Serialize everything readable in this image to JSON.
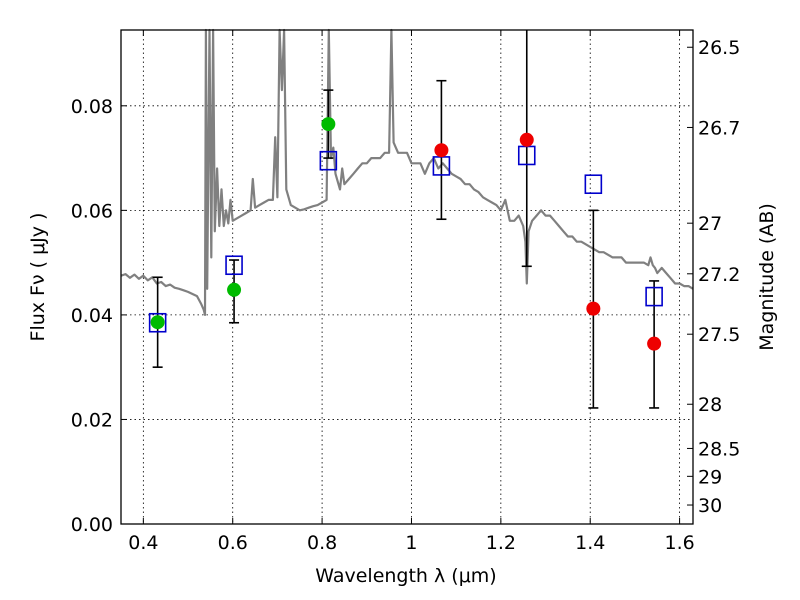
{
  "chart_data": {
    "type": "scatter",
    "title": "",
    "xlabel": "Wavelength  λ (μm)",
    "ylabel_left": "Flux  Fν  ( μJy )",
    "ylabel_right": "Magnitude (AB)",
    "xlim": [
      0.35,
      1.63
    ],
    "ylim": [
      0.0,
      0.0945
    ],
    "grid": true,
    "x_ticks": [
      {
        "value": 0.4,
        "label": "0.4"
      },
      {
        "value": 0.6,
        "label": "0.6"
      },
      {
        "value": 0.8,
        "label": "0.8"
      },
      {
        "value": 1.0,
        "label": "1"
      },
      {
        "value": 1.2,
        "label": "1.2"
      },
      {
        "value": 1.4,
        "label": "1.4"
      },
      {
        "value": 1.6,
        "label": "1.6"
      }
    ],
    "y_ticks": [
      {
        "value": 0.0,
        "label": "0.00"
      },
      {
        "value": 0.02,
        "label": "0.02"
      },
      {
        "value": 0.04,
        "label": "0.04"
      },
      {
        "value": 0.06,
        "label": "0.06"
      },
      {
        "value": 0.08,
        "label": "0.08"
      }
    ],
    "right_ticks": [
      {
        "label": "26.5",
        "magnitude": 26.5
      },
      {
        "label": "26.7",
        "magnitude": 26.7
      },
      {
        "label": "27",
        "magnitude": 27.0
      },
      {
        "label": "27.2",
        "magnitude": 27.2
      },
      {
        "label": "27.5",
        "magnitude": 27.5
      },
      {
        "label": "28",
        "magnitude": 28.0
      },
      {
        "label": "28.5",
        "magnitude": 28.5
      },
      {
        "label": "29",
        "magnitude": 29.0
      },
      {
        "label": "30",
        "magnitude": 30.0
      }
    ],
    "series": [
      {
        "kind": "spectrum",
        "color": "#808080",
        "points": [
          [
            0.35,
            0.0475
          ],
          [
            0.36,
            0.0478
          ],
          [
            0.37,
            0.0471
          ],
          [
            0.38,
            0.0477
          ],
          [
            0.39,
            0.0469
          ],
          [
            0.4,
            0.0475
          ],
          [
            0.41,
            0.0466
          ],
          [
            0.42,
            0.0472
          ],
          [
            0.43,
            0.046
          ],
          [
            0.44,
            0.0463
          ],
          [
            0.45,
            0.0455
          ],
          [
            0.46,
            0.0458
          ],
          [
            0.47,
            0.0452
          ],
          [
            0.48,
            0.045
          ],
          [
            0.49,
            0.0447
          ],
          [
            0.5,
            0.0444
          ],
          [
            0.51,
            0.044
          ],
          [
            0.52,
            0.0436
          ],
          [
            0.53,
            0.042
          ],
          [
            0.535,
            0.041
          ],
          [
            0.538,
            0.04
          ],
          [
            0.54,
            0.095
          ],
          [
            0.543,
            0.045
          ],
          [
            0.548,
            0.095
          ],
          [
            0.552,
            0.051
          ],
          [
            0.556,
            0.095
          ],
          [
            0.56,
            0.056
          ],
          [
            0.565,
            0.068
          ],
          [
            0.57,
            0.057
          ],
          [
            0.575,
            0.064
          ],
          [
            0.58,
            0.057
          ],
          [
            0.585,
            0.06
          ],
          [
            0.59,
            0.0575
          ],
          [
            0.595,
            0.062
          ],
          [
            0.6,
            0.058
          ],
          [
            0.61,
            0.0585
          ],
          [
            0.62,
            0.059
          ],
          [
            0.63,
            0.0595
          ],
          [
            0.64,
            0.06
          ],
          [
            0.645,
            0.066
          ],
          [
            0.65,
            0.0605
          ],
          [
            0.66,
            0.061
          ],
          [
            0.67,
            0.0615
          ],
          [
            0.68,
            0.062
          ],
          [
            0.69,
            0.062
          ],
          [
            0.695,
            0.074
          ],
          [
            0.7,
            0.0625
          ],
          [
            0.705,
            0.095
          ],
          [
            0.71,
            0.083
          ],
          [
            0.715,
            0.095
          ],
          [
            0.72,
            0.064
          ],
          [
            0.73,
            0.061
          ],
          [
            0.74,
            0.0605
          ],
          [
            0.75,
            0.06
          ],
          [
            0.76,
            0.0602
          ],
          [
            0.77,
            0.0605
          ],
          [
            0.78,
            0.0608
          ],
          [
            0.79,
            0.061
          ],
          [
            0.8,
            0.0615
          ],
          [
            0.81,
            0.062
          ],
          [
            0.815,
            0.095
          ],
          [
            0.82,
            0.07
          ],
          [
            0.825,
            0.072
          ],
          [
            0.83,
            0.067
          ],
          [
            0.84,
            0.064
          ],
          [
            0.845,
            0.068
          ],
          [
            0.85,
            0.065
          ],
          [
            0.86,
            0.066
          ],
          [
            0.87,
            0.067
          ],
          [
            0.88,
            0.068
          ],
          [
            0.89,
            0.069
          ],
          [
            0.9,
            0.069
          ],
          [
            0.91,
            0.07
          ],
          [
            0.92,
            0.07
          ],
          [
            0.93,
            0.07
          ],
          [
            0.94,
            0.071
          ],
          [
            0.95,
            0.071
          ],
          [
            0.955,
            0.095
          ],
          [
            0.96,
            0.073
          ],
          [
            0.965,
            0.072
          ],
          [
            0.97,
            0.071
          ],
          [
            0.98,
            0.071
          ],
          [
            0.99,
            0.071
          ],
          [
            1.0,
            0.069
          ],
          [
            1.01,
            0.069
          ],
          [
            1.02,
            0.069
          ],
          [
            1.03,
            0.067
          ],
          [
            1.04,
            0.069
          ],
          [
            1.05,
            0.07
          ],
          [
            1.06,
            0.068
          ],
          [
            1.07,
            0.069
          ],
          [
            1.08,
            0.068
          ],
          [
            1.09,
            0.067
          ],
          [
            1.1,
            0.0665
          ],
          [
            1.11,
            0.066
          ],
          [
            1.12,
            0.065
          ],
          [
            1.13,
            0.065
          ],
          [
            1.14,
            0.064
          ],
          [
            1.15,
            0.0635
          ],
          [
            1.16,
            0.0625
          ],
          [
            1.17,
            0.062
          ],
          [
            1.18,
            0.0615
          ],
          [
            1.19,
            0.061
          ],
          [
            1.2,
            0.06
          ],
          [
            1.21,
            0.062
          ],
          [
            1.22,
            0.058
          ],
          [
            1.23,
            0.058
          ],
          [
            1.24,
            0.059
          ],
          [
            1.25,
            0.057
          ],
          [
            1.255,
            0.054
          ],
          [
            1.258,
            0.046
          ],
          [
            1.262,
            0.056
          ],
          [
            1.27,
            0.058
          ],
          [
            1.28,
            0.059
          ],
          [
            1.29,
            0.06
          ],
          [
            1.3,
            0.059
          ],
          [
            1.31,
            0.059
          ],
          [
            1.32,
            0.058
          ],
          [
            1.33,
            0.057
          ],
          [
            1.34,
            0.056
          ],
          [
            1.35,
            0.055
          ],
          [
            1.36,
            0.055
          ],
          [
            1.37,
            0.054
          ],
          [
            1.38,
            0.054
          ],
          [
            1.39,
            0.0535
          ],
          [
            1.4,
            0.053
          ],
          [
            1.41,
            0.0525
          ],
          [
            1.42,
            0.052
          ],
          [
            1.43,
            0.052
          ],
          [
            1.44,
            0.0515
          ],
          [
            1.45,
            0.051
          ],
          [
            1.46,
            0.051
          ],
          [
            1.47,
            0.051
          ],
          [
            1.48,
            0.05
          ],
          [
            1.49,
            0.05
          ],
          [
            1.5,
            0.05
          ],
          [
            1.51,
            0.05
          ],
          [
            1.52,
            0.05
          ],
          [
            1.53,
            0.0495
          ],
          [
            1.535,
            0.051
          ],
          [
            1.54,
            0.0495
          ],
          [
            1.545,
            0.049
          ],
          [
            1.55,
            0.048
          ],
          [
            1.56,
            0.049
          ],
          [
            1.57,
            0.048
          ],
          [
            1.58,
            0.047
          ],
          [
            1.59,
            0.046
          ],
          [
            1.6,
            0.046
          ],
          [
            1.61,
            0.0455
          ],
          [
            1.62,
            0.0455
          ],
          [
            1.63,
            0.045
          ]
        ]
      },
      {
        "kind": "model_boxes",
        "color": "#0000cc",
        "points": [
          [
            0.432,
            0.0385
          ],
          [
            0.603,
            0.0495
          ],
          [
            0.814,
            0.0695
          ],
          [
            1.067,
            0.0685
          ],
          [
            1.258,
            0.0705
          ],
          [
            1.407,
            0.065
          ],
          [
            1.543,
            0.0435
          ]
        ]
      },
      {
        "kind": "detections",
        "color": "#00bb00",
        "points": [
          [
            0.432,
            0.0386
          ],
          [
            0.603,
            0.0448
          ],
          [
            0.814,
            0.0765
          ]
        ]
      },
      {
        "kind": "upper_limits",
        "color": "#ee0000",
        "points": [
          [
            1.067,
            0.0715
          ],
          [
            1.258,
            0.0735
          ],
          [
            1.407,
            0.0412
          ],
          [
            1.543,
            0.0345
          ]
        ]
      },
      {
        "kind": "error_bars",
        "color": "#000000",
        "points": [
          [
            0.432,
            0.03,
            0.0472
          ],
          [
            0.603,
            0.0385,
            0.0505
          ],
          [
            0.814,
            0.07,
            0.083
          ],
          [
            1.067,
            0.0583,
            0.0848
          ],
          [
            1.258,
            0.0493,
            0.0955
          ],
          [
            1.407,
            0.0222,
            0.06
          ],
          [
            1.543,
            0.0222,
            0.0465
          ]
        ]
      }
    ]
  }
}
